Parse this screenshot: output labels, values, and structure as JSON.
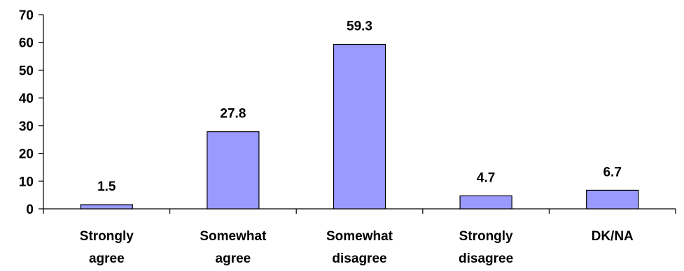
{
  "chart_data": {
    "type": "bar",
    "categories": [
      [
        "Strongly",
        "agree"
      ],
      [
        "Somewhat",
        "agree"
      ],
      [
        "Somewhat",
        "disagree"
      ],
      [
        "Strongly",
        "disagree"
      ],
      [
        "DK/NA"
      ]
    ],
    "values": [
      1.5,
      27.8,
      59.3,
      4.7,
      6.7
    ],
    "data_labels": [
      "1.5",
      "27.8",
      "59.3",
      "4.7",
      "6.7"
    ],
    "ylim": [
      0,
      70
    ],
    "yticks": [
      0,
      10,
      20,
      30,
      40,
      50,
      60,
      70
    ],
    "grid": false,
    "bar_color": "#9999ff",
    "bar_stroke": "#000000"
  }
}
